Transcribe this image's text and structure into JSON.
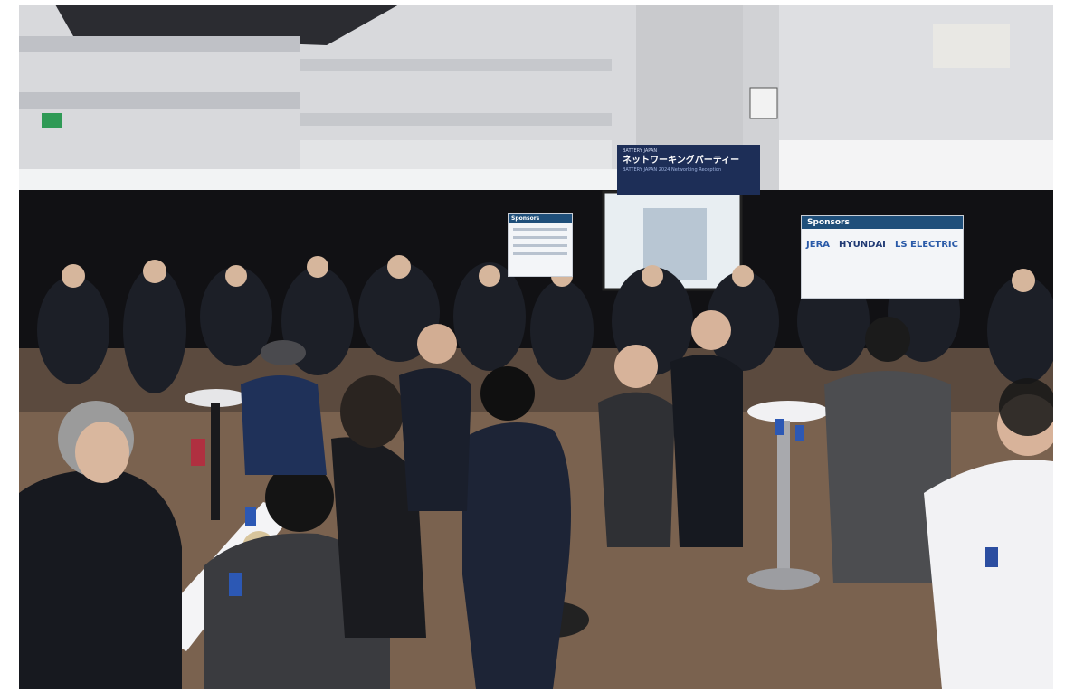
{
  "image": {
    "subject": "networking party crowd in exhibition hall"
  },
  "banner": {
    "small_top": "BATTERY JAPAN",
    "main": "ネットワーキングパーティー",
    "sub": "BATTERY JAPAN 2024 Networking Reception"
  },
  "sponsor_board": {
    "heading": "Sponsors",
    "logos": [
      "JERA",
      "HYUNDAI",
      "LS ELECTRIC"
    ]
  },
  "colors": {
    "wall": "#dcdde0",
    "backdrop": "#0f0f12",
    "carpet": "#6d5a4b",
    "banner": "#1d2e57"
  }
}
